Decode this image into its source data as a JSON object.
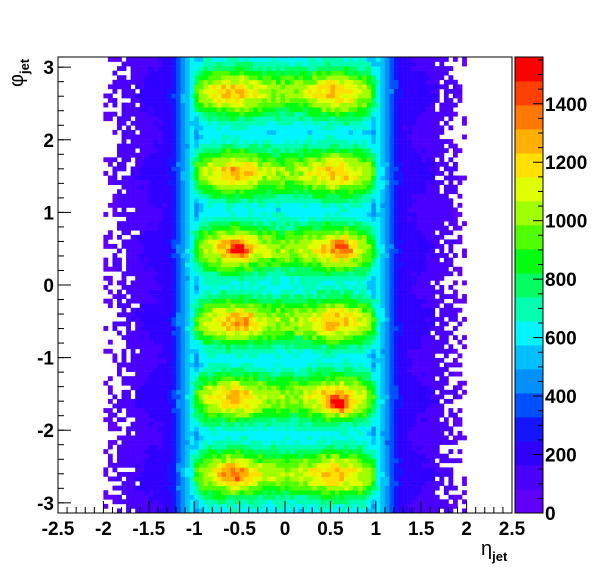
{
  "chart_data": {
    "type": "heatmap",
    "xlabel": {
      "symbol": "η",
      "subscript": "jet"
    },
    "ylabel": {
      "symbol": "φ",
      "subscript": "jet"
    },
    "xlim": [
      -2.5,
      2.5
    ],
    "ylim": [
      -3.14,
      3.14
    ],
    "x_ticks": [
      -2.5,
      -2,
      -1.5,
      -1,
      -0.5,
      0,
      0.5,
      1,
      1.5,
      2,
      2.5
    ],
    "x_tick_labels": [
      "-2.5",
      "-2",
      "-1.5",
      "-1",
      "-0.5",
      "0",
      "0.5",
      "1",
      "1.5",
      "2",
      "2.5"
    ],
    "y_ticks": [
      -3,
      -2,
      -1,
      0,
      1,
      2,
      3
    ],
    "y_tick_labels": [
      "-3",
      "-2",
      "-1",
      "0",
      "1",
      "2",
      "3"
    ],
    "z_range": [
      0,
      1560
    ],
    "z_ticks": [
      0,
      200,
      400,
      600,
      800,
      1000,
      1200,
      1400
    ],
    "z_tick_labels": [
      "0",
      "200",
      "400",
      "600",
      "800",
      "1000",
      "1200",
      "1400"
    ],
    "bins": {
      "x": 100,
      "y": 100
    },
    "hot_spots": [
      {
        "eta": -0.5,
        "phi": 0.5,
        "z": 1450
      },
      {
        "eta": 0.65,
        "phi": 0.5,
        "z": 1400
      },
      {
        "eta": 0.6,
        "phi": -1.65,
        "z": 1550
      },
      {
        "eta": -0.55,
        "phi": -2.6,
        "z": 1400
      },
      {
        "eta": -0.5,
        "phi": 2.65,
        "z": 1200
      },
      {
        "eta": -0.5,
        "phi": 1.5,
        "z": 1250
      },
      {
        "eta": -0.5,
        "phi": -1.55,
        "z": 1250
      },
      {
        "eta": -0.45,
        "phi": -0.5,
        "z": 1300
      }
    ],
    "palette": [
      "#5f00ff",
      "#4a00ff",
      "#3000ff",
      "#1414ff",
      "#0050ff",
      "#0090ff",
      "#00c0ff",
      "#00f5ff",
      "#00ffb0",
      "#00ff60",
      "#00ff10",
      "#50ff00",
      "#a0ff00",
      "#e0ff00",
      "#ffe000",
      "#ffb000",
      "#ff7800",
      "#ff4000",
      "#ff0000"
    ]
  }
}
